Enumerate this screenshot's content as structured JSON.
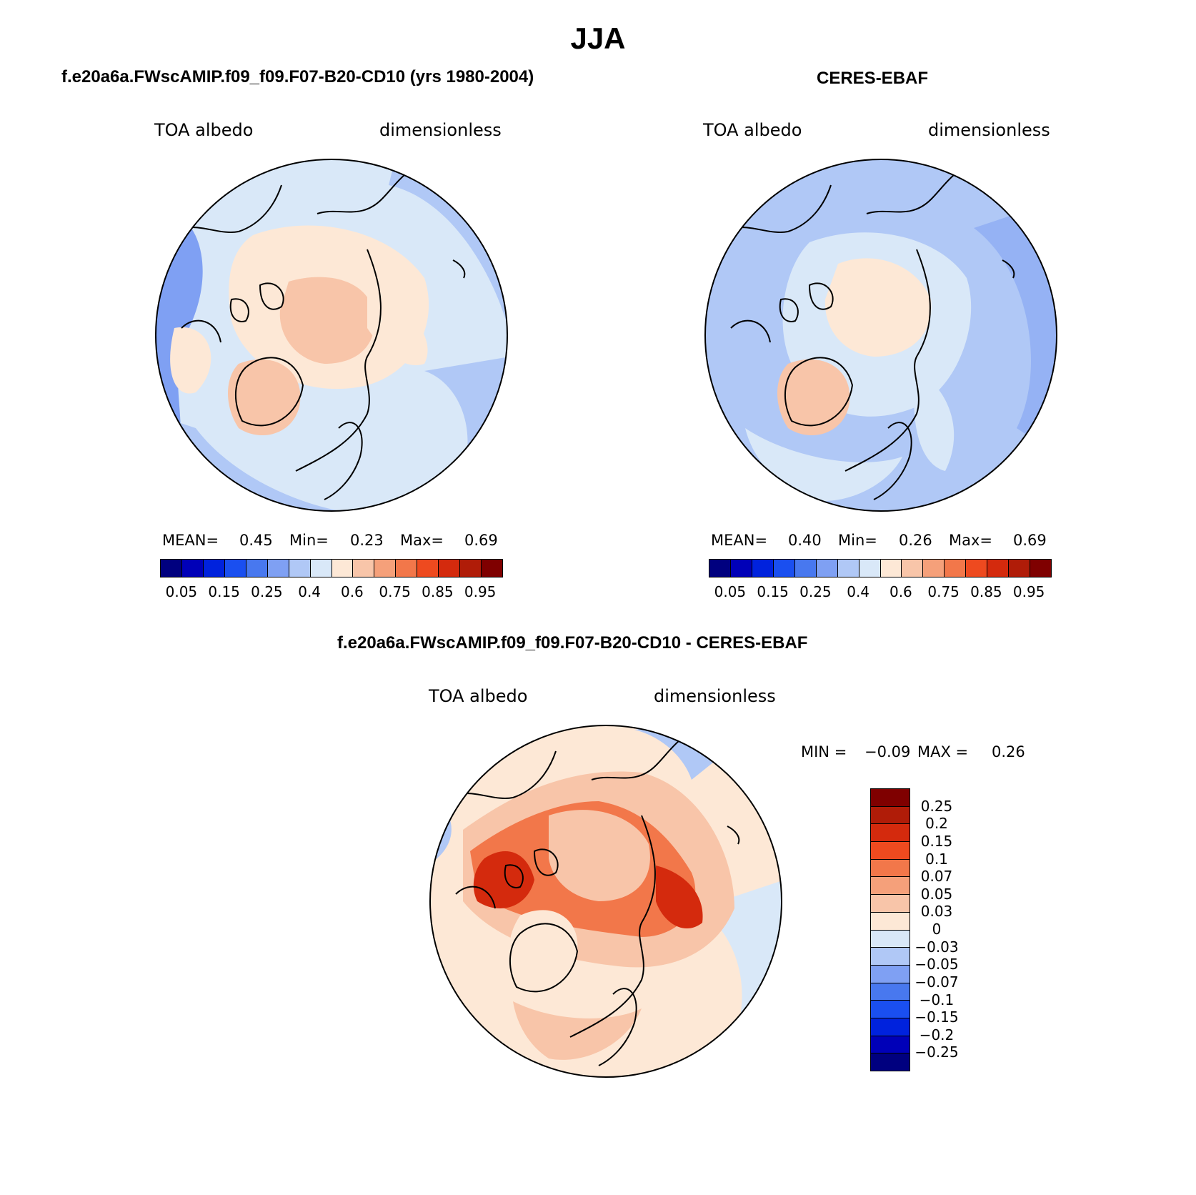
{
  "title": "JJA",
  "panels": {
    "model": {
      "title": "f.e20a6a.FWscAMIP.f09_f09.F07-B20-CD10 (yrs 1980-2004)",
      "left_label": "TOA albedo",
      "right_label": "dimensionless",
      "mean_label": "MEAN=",
      "mean": "0.45",
      "min_label": "Min=",
      "min": "0.23",
      "max_label": "Max=",
      "max": "0.69"
    },
    "obs": {
      "title": "CERES-EBAF",
      "left_label": "TOA albedo",
      "right_label": "dimensionless",
      "mean_label": "MEAN=",
      "mean": "0.40",
      "min_label": "Min=",
      "min": "0.26",
      "max_label": "Max=",
      "max": "0.69"
    },
    "diff": {
      "title": "f.e20a6a.FWscAMIP.f09_f09.F07-B20-CD10 - CERES-EBAF",
      "left_label": "TOA albedo",
      "right_label": "dimensionless",
      "min_label": "MIN =",
      "min": "−0.09",
      "max_label": "MAX =",
      "max": "0.26"
    }
  },
  "colorbar_abs": {
    "colors": [
      "#00007f",
      "#0000b8",
      "#0022dd",
      "#1a4ff0",
      "#4878ef",
      "#7fa0f3",
      "#b0c8f6",
      "#d9e8f8",
      "#fde8d6",
      "#f8c5a9",
      "#f5a07a",
      "#f2774a",
      "#ee4a1f",
      "#d42a0d",
      "#b01c08",
      "#7f0000"
    ],
    "tick_labels": [
      "0.05",
      "0.15",
      "0.25",
      "0.4",
      "0.6",
      "0.75",
      "0.85",
      "0.95"
    ]
  },
  "colorbar_diff": {
    "colors": [
      "#7f0000",
      "#b01c08",
      "#d42a0d",
      "#ee4a1f",
      "#f2774a",
      "#f5a07a",
      "#f8c5a9",
      "#fde8d6",
      "#d9e8f8",
      "#b0c8f6",
      "#7fa0f3",
      "#4878ef",
      "#1a4ff0",
      "#0022dd",
      "#0000b8",
      "#00007f"
    ],
    "tick_labels": [
      "0.25",
      "0.2",
      "0.15",
      "0.1",
      "0.07",
      "0.05",
      "0.03",
      "0",
      "−0.03",
      "−0.05",
      "−0.07",
      "−0.1",
      "−0.15",
      "−0.2",
      "−0.25"
    ]
  }
}
